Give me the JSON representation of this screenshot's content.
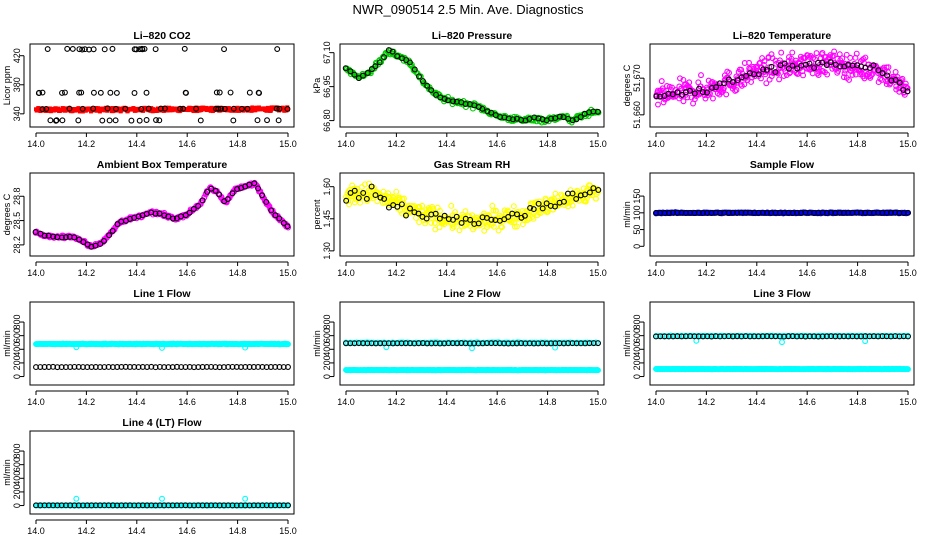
{
  "page_title": "NWR_090514  2.5 Min. Ave. Diagnostics",
  "colors": {
    "black": "#000000",
    "red": "#ff0000",
    "green": "#00cc00",
    "magenta": "#ff00ff",
    "yellow": "#ffff00",
    "blue": "#0000ff",
    "cyan": "#00ffff"
  },
  "chart_data": [
    {
      "id": "co2",
      "type": "scatter",
      "title": "Li–820 CO2",
      "ylabel": "Licor ppm",
      "xlim": [
        14.0,
        15.0
      ],
      "ylim": [
        326,
        432
      ],
      "xticks": [
        14.0,
        14.2,
        14.4,
        14.6,
        14.8,
        15.0
      ],
      "yticks": [
        340,
        380,
        420
      ],
      "series": [
        {
          "name": "raw",
          "color": "#ff0000",
          "style": "band",
          "shape": "square",
          "y0": 343,
          "y1": 348,
          "y0_end": 344,
          "y1_end": 349,
          "noise": 0.8
        },
        {
          "name": "average",
          "color": "#000000",
          "style": "levels",
          "levels": [
            331,
            347,
            369,
            429
          ],
          "noise": 0.5
        }
      ]
    },
    {
      "id": "pressure",
      "type": "scatter",
      "title": "Li–820 Pressure",
      "ylabel": "kPa",
      "xlim": [
        14.0,
        15.0
      ],
      "ylim": [
        66.785,
        67.125
      ],
      "xticks": [
        14.0,
        14.2,
        14.4,
        14.6,
        14.8,
        15.0
      ],
      "yticks": [
        66.8,
        66.95,
        67.1
      ],
      "ytick_labels": [
        "66.80",
        "66.95",
        "67.10"
      ],
      "series": [
        {
          "name": "raw",
          "color": "#00cc00",
          "style": "curve",
          "x": [
            14.0,
            14.05,
            14.1,
            14.15,
            14.17,
            14.2,
            14.25,
            14.3,
            14.35,
            14.4,
            14.45,
            14.5,
            14.55,
            14.6,
            14.65,
            14.7,
            14.75,
            14.8,
            14.85,
            14.9,
            14.95,
            15.0
          ],
          "y": [
            67.03,
            66.99,
            67.02,
            67.08,
            67.11,
            67.09,
            67.06,
            66.98,
            66.92,
            66.89,
            66.88,
            66.87,
            66.85,
            66.82,
            66.81,
            66.8,
            66.81,
            66.8,
            66.82,
            66.8,
            66.83,
            66.84
          ],
          "noise": 0.012,
          "n": 260
        },
        {
          "name": "average",
          "color": "#000000",
          "style": "curve",
          "x": [
            14.0,
            14.05,
            14.1,
            14.15,
            14.17,
            14.2,
            14.25,
            14.3,
            14.35,
            14.4,
            14.45,
            14.5,
            14.55,
            14.6,
            14.65,
            14.7,
            14.75,
            14.8,
            14.85,
            14.9,
            14.95,
            15.0
          ],
          "y": [
            67.03,
            66.99,
            67.02,
            67.08,
            67.11,
            67.09,
            67.06,
            66.98,
            66.92,
            66.89,
            66.88,
            66.87,
            66.85,
            66.82,
            66.81,
            66.8,
            66.81,
            66.8,
            66.82,
            66.8,
            66.83,
            66.84
          ],
          "noise": 0.004,
          "n": 60
        }
      ]
    },
    {
      "id": "li_temp",
      "type": "scatter",
      "title": "Li–820 Temperature",
      "ylabel": "degrees C",
      "xlim": [
        14.0,
        15.0
      ],
      "ylim": [
        51.6575,
        51.6785
      ],
      "xticks": [
        14.0,
        14.2,
        14.4,
        14.6,
        14.8,
        15.0
      ],
      "yticks": [
        51.66,
        51.67
      ],
      "ytick_labels": [
        "51.660",
        "51.670"
      ],
      "series": [
        {
          "name": "raw",
          "color": "#ff00ff",
          "style": "curve",
          "x": [
            14.0,
            14.1,
            14.2,
            14.3,
            14.4,
            14.5,
            14.6,
            14.7,
            14.8,
            14.9,
            15.0
          ],
          "y": [
            51.665,
            51.666,
            51.667,
            51.669,
            51.672,
            51.673,
            51.674,
            51.674,
            51.673,
            51.672,
            51.666
          ],
          "noise": 0.0032,
          "n": 420
        },
        {
          "name": "average",
          "color": "#000000",
          "style": "curve",
          "x": [
            14.0,
            14.1,
            14.2,
            14.3,
            14.4,
            14.5,
            14.6,
            14.7,
            14.8,
            14.9,
            15.0
          ],
          "y": [
            51.665,
            51.666,
            51.667,
            51.669,
            51.672,
            51.673,
            51.674,
            51.674,
            51.673,
            51.672,
            51.666
          ],
          "noise": 0.0012,
          "n": 60
        }
      ]
    },
    {
      "id": "ambient_temp",
      "type": "scatter",
      "title": "Ambient Box Temperature",
      "ylabel": "degrees C",
      "xlim": [
        14.0,
        15.0
      ],
      "ylim": [
        28.1,
        29.05
      ],
      "xticks": [
        14.0,
        14.2,
        14.4,
        14.6,
        14.8,
        15.0
      ],
      "yticks": [
        28.2,
        28.5,
        28.8
      ],
      "ytick_labels": [
        "28.2",
        "28.5",
        "28.8"
      ],
      "series": [
        {
          "name": "raw",
          "color": "#ff00ff",
          "style": "curve",
          "x": [
            14.0,
            14.03,
            14.06,
            14.1,
            14.15,
            14.18,
            14.22,
            14.26,
            14.3,
            14.33,
            14.37,
            14.42,
            14.46,
            14.5,
            14.55,
            14.6,
            14.65,
            14.69,
            14.72,
            14.75,
            14.79,
            14.83,
            14.87,
            14.9,
            14.94,
            15.0
          ],
          "y": [
            28.36,
            28.32,
            28.3,
            28.3,
            28.3,
            28.25,
            28.18,
            28.22,
            28.36,
            28.48,
            28.52,
            28.56,
            28.6,
            28.58,
            28.52,
            28.58,
            28.7,
            28.9,
            28.85,
            28.72,
            28.88,
            28.92,
            28.96,
            28.8,
            28.6,
            28.42
          ],
          "noise": 0.018,
          "n": 360
        },
        {
          "name": "average",
          "color": "#000000",
          "style": "curve",
          "x": [
            14.0,
            14.03,
            14.06,
            14.1,
            14.15,
            14.18,
            14.22,
            14.26,
            14.3,
            14.33,
            14.37,
            14.42,
            14.46,
            14.5,
            14.55,
            14.6,
            14.65,
            14.69,
            14.72,
            14.75,
            14.79,
            14.83,
            14.87,
            14.9,
            14.94,
            15.0
          ],
          "y": [
            28.36,
            28.32,
            28.3,
            28.3,
            28.3,
            28.25,
            28.18,
            28.22,
            28.36,
            28.48,
            28.52,
            28.56,
            28.6,
            28.58,
            28.52,
            28.58,
            28.7,
            28.9,
            28.85,
            28.72,
            28.88,
            28.92,
            28.96,
            28.8,
            28.6,
            28.42
          ],
          "noise": 0.008,
          "n": 60
        }
      ]
    },
    {
      "id": "rh",
      "type": "scatter",
      "title": "Gas Stream RH",
      "ylabel": "percent",
      "xlim": [
        14.0,
        15.0
      ],
      "ylim": [
        1.29,
        1.65
      ],
      "xticks": [
        14.0,
        14.2,
        14.4,
        14.6,
        14.8,
        15.0
      ],
      "yticks": [
        1.3,
        1.45,
        1.6
      ],
      "ytick_labels": [
        "1.30",
        "1.45",
        "1.60"
      ],
      "series": [
        {
          "name": "raw",
          "color": "#ffff00",
          "style": "curve",
          "x": [
            14.0,
            14.1,
            14.2,
            14.3,
            14.4,
            14.5,
            14.6,
            14.7,
            14.8,
            14.9,
            15.0
          ],
          "y": [
            1.56,
            1.57,
            1.52,
            1.47,
            1.45,
            1.43,
            1.45,
            1.47,
            1.51,
            1.55,
            1.58
          ],
          "noise": 0.045,
          "n": 420
        },
        {
          "name": "average",
          "color": "#000000",
          "style": "curve",
          "x": [
            14.0,
            14.1,
            14.2,
            14.3,
            14.4,
            14.5,
            14.6,
            14.7,
            14.8,
            14.9,
            15.0
          ],
          "y": [
            1.56,
            1.57,
            1.52,
            1.47,
            1.45,
            1.43,
            1.45,
            1.47,
            1.51,
            1.55,
            1.58
          ],
          "noise": 0.028,
          "n": 60
        }
      ]
    },
    {
      "id": "sample_flow",
      "type": "scatter",
      "title": "Sample Flow",
      "ylabel": "ml/min",
      "xlim": [
        14.0,
        15.0
      ],
      "ylim": [
        -20,
        210
      ],
      "xticks": [
        14.0,
        14.2,
        14.4,
        14.6,
        14.8,
        15.0
      ],
      "yticks": [
        0,
        50,
        100,
        150
      ],
      "series": [
        {
          "name": "raw",
          "color": "#0000ff",
          "style": "flat",
          "y": 100,
          "noise": 1.5,
          "n": 300
        },
        {
          "name": "average",
          "color": "#000000",
          "style": "flat",
          "y": 100,
          "noise": 0.6,
          "n": 60
        }
      ]
    },
    {
      "id": "line1",
      "type": "scatter",
      "title": "Line 1 Flow",
      "ylabel": "ml/min",
      "xlim": [
        14.0,
        15.0
      ],
      "ylim": [
        -80,
        1050
      ],
      "xticks": [
        14.0,
        14.2,
        14.4,
        14.6,
        14.8,
        15.0
      ],
      "yticks": [
        0,
        200,
        400,
        600,
        800
      ],
      "series": [
        {
          "name": "raw",
          "color": "#00ffff",
          "style": "flat",
          "y": 478,
          "noise": 5,
          "n": 320,
          "spikes": [
            [
              14.16,
              430
            ],
            [
              14.5,
              420
            ],
            [
              14.83,
              425
            ]
          ]
        },
        {
          "name": "average",
          "color": "#000000",
          "style": "flat",
          "y": 140,
          "noise": 2,
          "n": 60
        }
      ]
    },
    {
      "id": "line2",
      "type": "scatter",
      "title": "Line 2 Flow",
      "ylabel": "ml/min",
      "xlim": [
        14.0,
        15.0
      ],
      "ylim": [
        -80,
        1050
      ],
      "xticks": [
        14.0,
        14.2,
        14.4,
        14.6,
        14.8,
        15.0
      ],
      "yticks": [
        0,
        200,
        400,
        600,
        800
      ],
      "series": [
        {
          "name": "raw",
          "color": "#00ffff",
          "style": "flat",
          "y": 95,
          "noise": 3,
          "n": 320
        },
        {
          "name": "raw_high",
          "color": "#00ffff",
          "style": "flat",
          "y": 498,
          "noise": 4,
          "n": 120,
          "spikes": [
            [
              14.16,
              430
            ],
            [
              14.5,
              415
            ],
            [
              14.83,
              425
            ]
          ]
        },
        {
          "name": "average",
          "color": "#000000",
          "style": "flat",
          "y": 488,
          "noise": 3,
          "n": 60
        }
      ]
    },
    {
      "id": "line3",
      "type": "scatter",
      "title": "Line 3 Flow",
      "ylabel": "ml/min",
      "xlim": [
        14.0,
        15.0
      ],
      "ylim": [
        -80,
        1050
      ],
      "xticks": [
        14.0,
        14.2,
        14.4,
        14.6,
        14.8,
        15.0
      ],
      "yticks": [
        0,
        200,
        400,
        600,
        800
      ],
      "series": [
        {
          "name": "raw",
          "color": "#00ffff",
          "style": "flat",
          "y": 110,
          "noise": 3,
          "n": 320
        },
        {
          "name": "raw_high",
          "color": "#00ffff",
          "style": "flat",
          "y": 596,
          "noise": 4,
          "n": 120,
          "spikes": [
            [
              14.16,
              525
            ],
            [
              14.5,
              505
            ],
            [
              14.83,
              520
            ]
          ]
        },
        {
          "name": "average",
          "color": "#000000",
          "style": "flat",
          "y": 590,
          "noise": 3,
          "n": 60
        }
      ]
    },
    {
      "id": "line4",
      "type": "scatter",
      "title": "Line 4 (LT) Flow",
      "ylabel": "ml/min",
      "xlim": [
        14.0,
        15.0
      ],
      "ylim": [
        -80,
        1050
      ],
      "xticks": [
        14.0,
        14.2,
        14.4,
        14.6,
        14.8,
        15.0
      ],
      "yticks": [
        0,
        200,
        400,
        600,
        800
      ],
      "series": [
        {
          "name": "raw",
          "color": "#00ffff",
          "style": "flat",
          "y": 3,
          "noise": 2,
          "n": 200,
          "spikes": [
            [
              14.16,
              100
            ],
            [
              14.5,
              100
            ],
            [
              14.83,
              100
            ]
          ]
        },
        {
          "name": "average",
          "color": "#000000",
          "style": "flat",
          "y": 3,
          "noise": 1,
          "n": 60
        }
      ]
    }
  ]
}
